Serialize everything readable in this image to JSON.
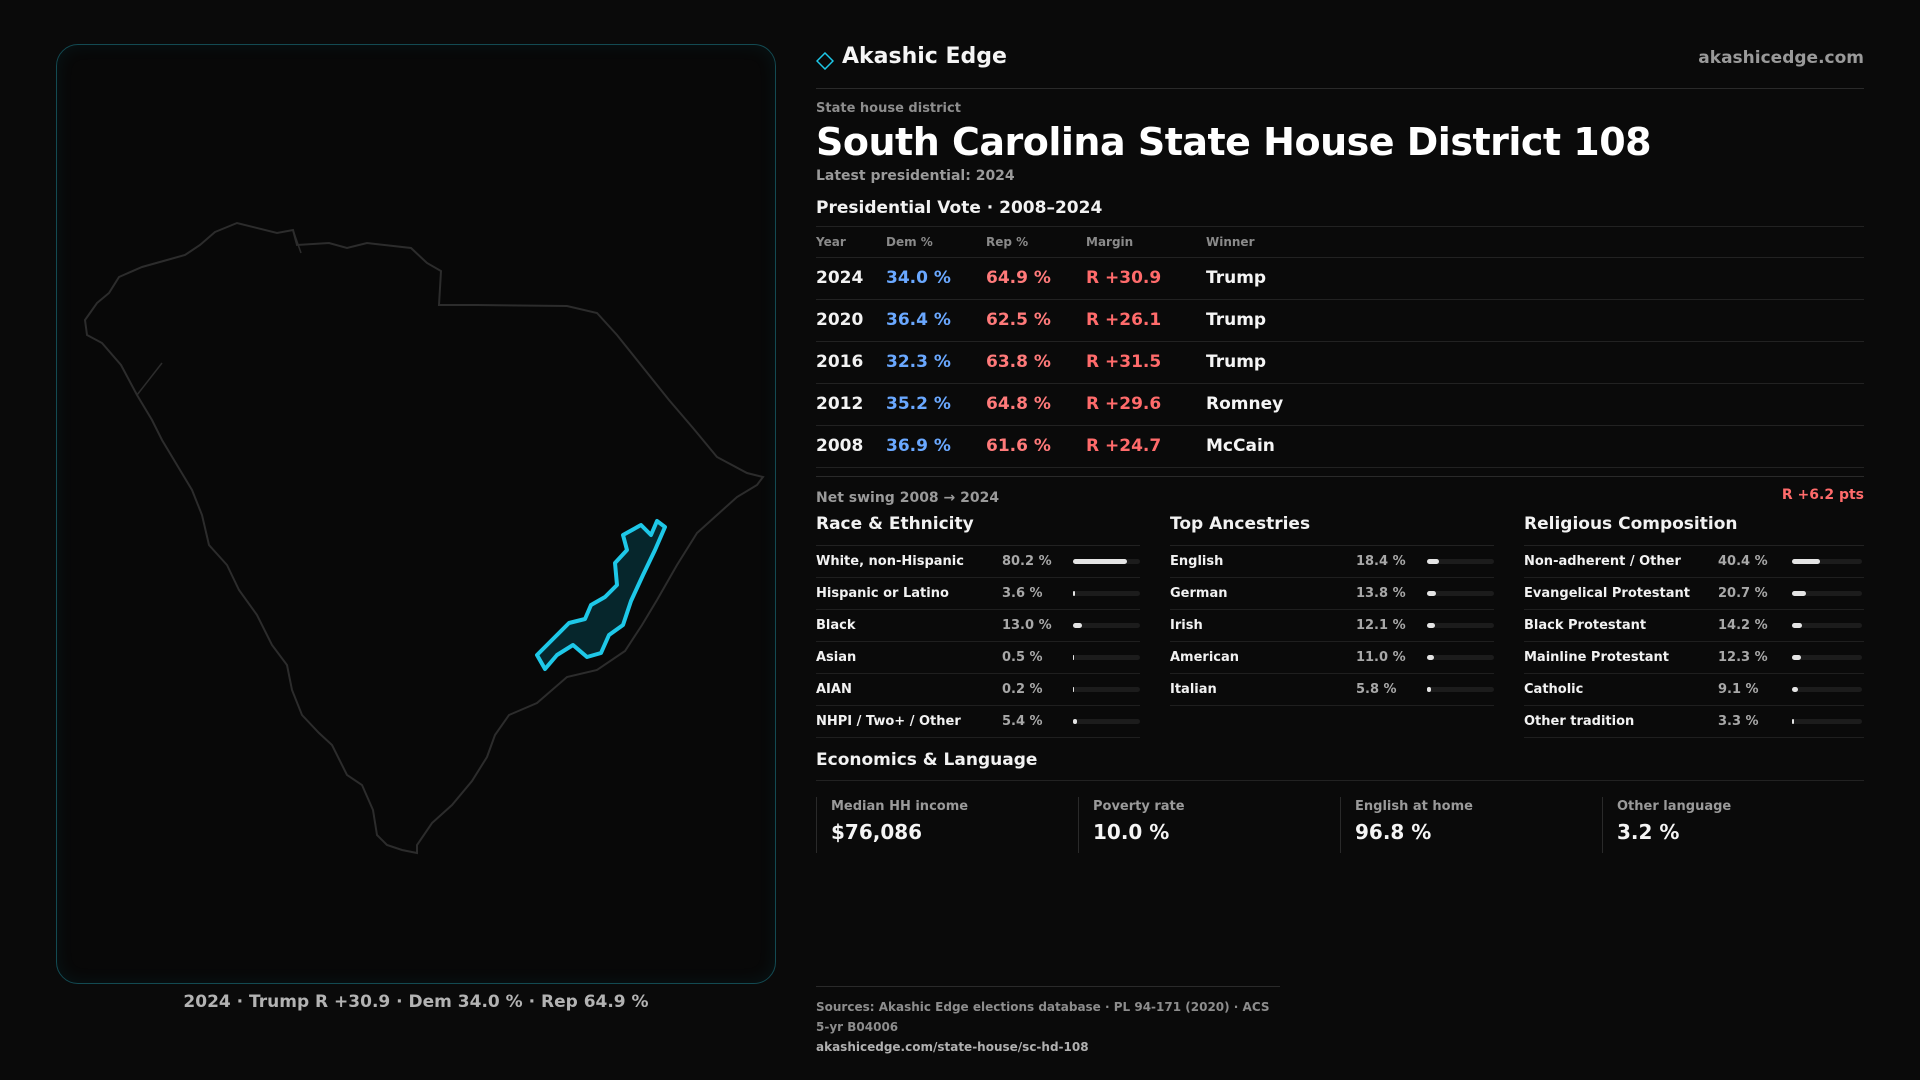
{
  "brand": {
    "name": "Akashic Edge",
    "url": "akashicedge.com"
  },
  "district": {
    "type_label": "State house district",
    "title": "South Carolina State House District 108",
    "latest": "Latest presidential: 2024"
  },
  "map": {
    "caption": "2024 · Trump R +30.9 · Dem 34.0 % · Rep 64.9 %",
    "district_color": "#1ec8e8",
    "state_outline_color": "#2c2c2c"
  },
  "presidential": {
    "heading": "Presidential Vote · 2008–2024",
    "headers": {
      "year": "Year",
      "dem": "Dem %",
      "rep": "Rep %",
      "margin": "Margin",
      "winner": "Winner"
    },
    "rows": [
      {
        "year": "2024",
        "dem": "34.0 %",
        "rep": "64.9 %",
        "margin": "R +30.9",
        "winner": "Trump"
      },
      {
        "year": "2020",
        "dem": "36.4 %",
        "rep": "62.5 %",
        "margin": "R +26.1",
        "winner": "Trump"
      },
      {
        "year": "2016",
        "dem": "32.3 %",
        "rep": "63.8 %",
        "margin": "R +31.5",
        "winner": "Trump"
      },
      {
        "year": "2012",
        "dem": "35.2 %",
        "rep": "64.8 %",
        "margin": "R +29.6",
        "winner": "Romney"
      },
      {
        "year": "2008",
        "dem": "36.9 %",
        "rep": "61.6 %",
        "margin": "R +24.7",
        "winner": "McCain"
      }
    ],
    "swing_label": "Net swing 2008 → 2024",
    "swing_value": "R +6.2 pts"
  },
  "race": {
    "heading": "Race & Ethnicity",
    "rows": [
      {
        "label": "White, non-Hispanic",
        "pct": "80.2 %",
        "value": 80.2
      },
      {
        "label": "Hispanic or Latino",
        "pct": "3.6 %",
        "value": 3.6
      },
      {
        "label": "Black",
        "pct": "13.0 %",
        "value": 13.0
      },
      {
        "label": "Asian",
        "pct": "0.5 %",
        "value": 0.5
      },
      {
        "label": "AIAN",
        "pct": "0.2 %",
        "value": 0.2
      },
      {
        "label": "NHPI / Two+ / Other",
        "pct": "5.4 %",
        "value": 5.4
      }
    ]
  },
  "ancestry": {
    "heading": "Top Ancestries",
    "rows": [
      {
        "label": "English",
        "pct": "18.4 %",
        "value": 18.4
      },
      {
        "label": "German",
        "pct": "13.8 %",
        "value": 13.8
      },
      {
        "label": "Irish",
        "pct": "12.1 %",
        "value": 12.1
      },
      {
        "label": "American",
        "pct": "11.0 %",
        "value": 11.0
      },
      {
        "label": "Italian",
        "pct": "5.8 %",
        "value": 5.8
      }
    ]
  },
  "religion": {
    "heading": "Religious Composition",
    "rows": [
      {
        "label": "Non-adherent / Other",
        "pct": "40.4 %",
        "value": 40.4
      },
      {
        "label": "Evangelical Protestant",
        "pct": "20.7 %",
        "value": 20.7
      },
      {
        "label": "Black Protestant",
        "pct": "14.2 %",
        "value": 14.2
      },
      {
        "label": "Mainline Protestant",
        "pct": "12.3 %",
        "value": 12.3
      },
      {
        "label": "Catholic",
        "pct": "9.1 %",
        "value": 9.1
      },
      {
        "label": "Other tradition",
        "pct": "3.3 %",
        "value": 3.3
      }
    ]
  },
  "economics": {
    "heading": "Economics & Language",
    "items": [
      {
        "label": "Median HH income",
        "value": "$76,086"
      },
      {
        "label": "Poverty rate",
        "value": "10.0 %"
      },
      {
        "label": "English at home",
        "value": "96.8 %"
      },
      {
        "label": "Other language",
        "value": "3.2 %"
      }
    ]
  },
  "sources": {
    "text": "Sources: Akashic Edge elections database · PL 94-171 (2020) · ACS 5-yr B04006",
    "url": "akashicedge.com/state-house/sc-hd-108"
  },
  "colors": {
    "dem": "#6aa8ff",
    "rep": "#ff7a7a",
    "accent": "#1ec8e8"
  }
}
